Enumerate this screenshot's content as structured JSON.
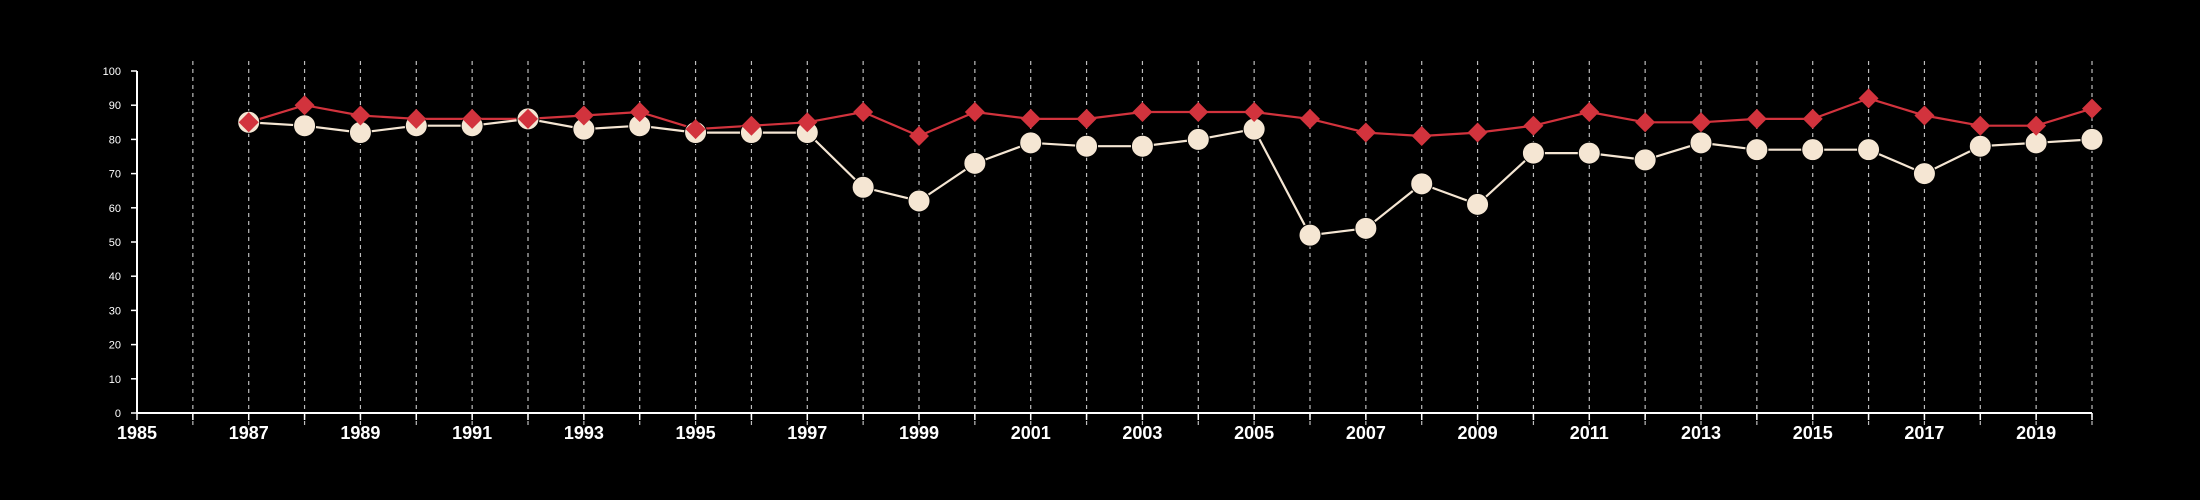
{
  "chart_data": {
    "type": "line",
    "title": "",
    "xlabel": "",
    "ylabel": "",
    "xlim": [
      1985,
      2020
    ],
    "ylim": [
      0,
      100
    ],
    "x_ticks": [
      1985,
      1987,
      1989,
      1991,
      1993,
      1995,
      1997,
      1999,
      2001,
      2003,
      2005,
      2007,
      2009,
      2011,
      2013,
      2015,
      2017,
      2019
    ],
    "y_ticks": [
      0,
      10,
      20,
      30,
      40,
      50,
      60,
      70,
      80,
      90,
      100
    ],
    "grid": "vertical-dashed",
    "legend": "none",
    "x": [
      1987,
      1988,
      1989,
      1990,
      1991,
      1992,
      1993,
      1994,
      1995,
      1996,
      1997,
      1998,
      1999,
      2000,
      2001,
      2002,
      2003,
      2004,
      2005,
      2006,
      2007,
      2008,
      2009,
      2010,
      2011,
      2012,
      2013,
      2014,
      2015,
      2016,
      2017,
      2018,
      2019,
      2020
    ],
    "series": [
      {
        "color": "#d2333d",
        "marker": "diamond",
        "values": [
          85,
          90,
          87,
          86,
          86,
          86,
          87,
          88,
          83,
          84,
          85,
          88,
          81,
          88,
          86,
          86,
          88,
          88,
          88,
          86,
          82,
          81,
          82,
          84,
          88,
          85,
          85,
          86,
          86,
          92,
          87,
          84,
          84,
          89
        ]
      },
      {
        "color": "#f5e6d3",
        "marker": "circle",
        "values": [
          85,
          84,
          82,
          84,
          84,
          86,
          83,
          84,
          82,
          82,
          82,
          66,
          62,
          73,
          79,
          78,
          78,
          80,
          83,
          52,
          54,
          67,
          61,
          76,
          76,
          74,
          79,
          77,
          77,
          77,
          70,
          78,
          79,
          80
        ]
      }
    ]
  }
}
